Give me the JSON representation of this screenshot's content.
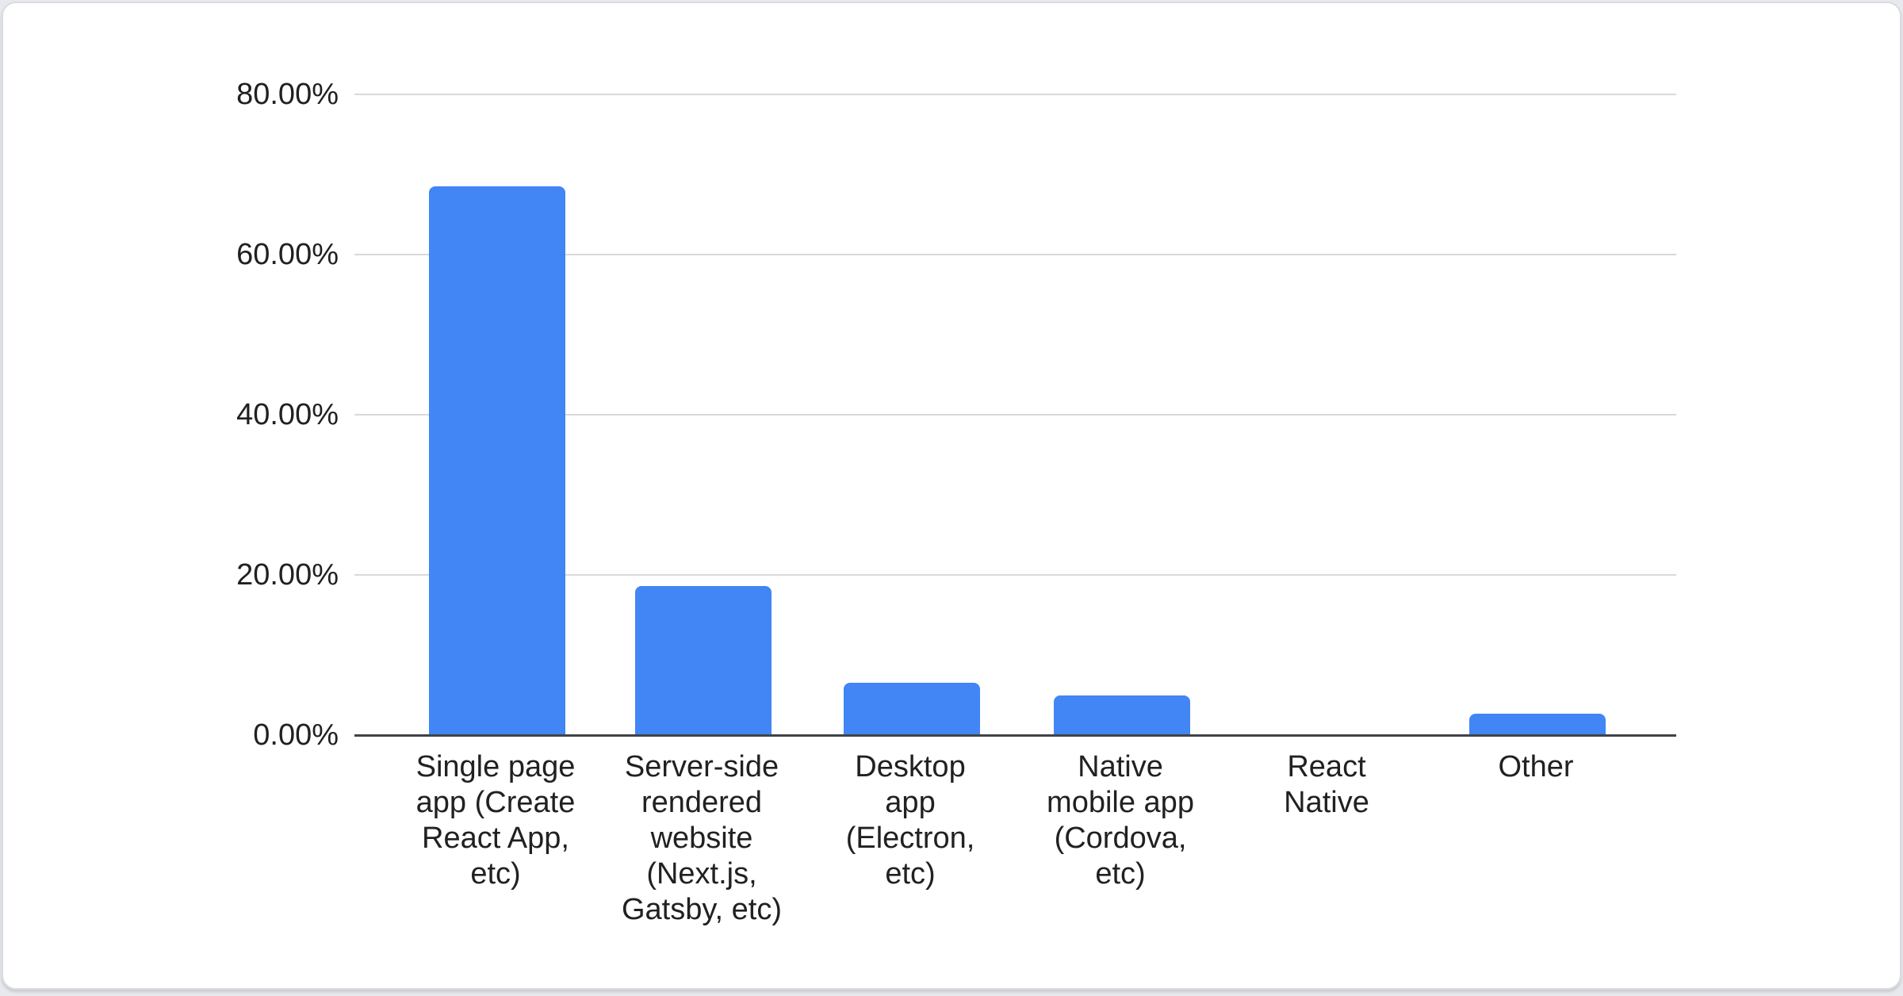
{
  "chart_data": {
    "type": "bar",
    "title": "",
    "xlabel": "",
    "ylabel": "",
    "categories": [
      "Single page app (Create React App, etc)",
      "Server-side rendered website (Next.js, Gatsby, etc)",
      "Desktop app (Electron, etc)",
      "Native mobile app (Cordova, etc)",
      "React Native",
      "Other"
    ],
    "category_lines": [
      [
        "Single page",
        "app (Create",
        "React App,",
        "etc)"
      ],
      [
        "Server-side",
        "rendered",
        "website",
        "(Next.js,",
        "Gatsby, etc)"
      ],
      [
        "Desktop",
        "app",
        "(Electron,",
        "etc)"
      ],
      [
        "Native",
        "mobile app",
        "(Cordova,",
        "etc)"
      ],
      [
        "React",
        "Native"
      ],
      [
        "Other"
      ]
    ],
    "values": [
      68.4,
      18.5,
      6.4,
      4.9,
      0.0,
      2.6
    ],
    "ytick_labels": [
      "80.00%",
      "60.00%",
      "40.00%",
      "20.00%",
      "0.00%"
    ],
    "ylim": [
      0,
      80
    ],
    "grid_step": 20,
    "grid": "on",
    "legend": "none",
    "colors": {
      "bar": "#4285f4",
      "gridline": "#d9d9d9",
      "axis_line": "#404346",
      "text": "#212121",
      "card_background": "#ffffff",
      "card_border": "#d9dce1",
      "page_background": "#e7e9ec"
    }
  }
}
